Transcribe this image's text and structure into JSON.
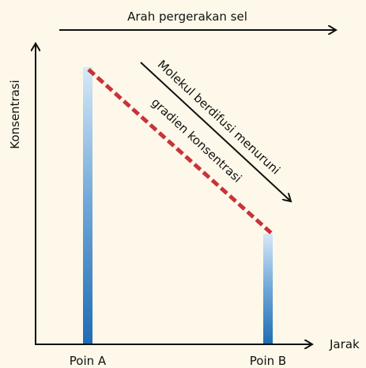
{
  "header": {
    "title": "Arah pergerakan sel"
  },
  "axes": {
    "y_label": "Konsentrasi",
    "x_label": "Jarak"
  },
  "points": [
    {
      "label": "Poin A"
    },
    {
      "label": "Poin B"
    }
  ],
  "annotation": {
    "line1": "Molekul berdifusi menuruni",
    "line2": "gradien konsentrasi"
  }
}
